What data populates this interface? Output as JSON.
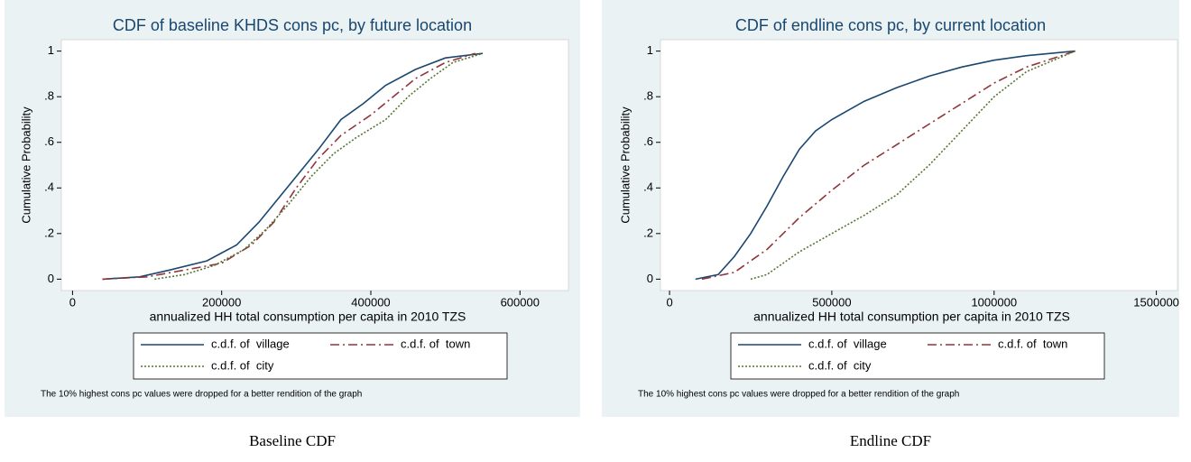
{
  "chart_data": [
    {
      "type": "line",
      "title": "CDF of baseline KHDS cons pc, by future location",
      "xlabel": "annualized HH total consumption per capita in 2010 TZS",
      "ylabel": "Cumulative Probability",
      "note": "The 10% highest cons pc values were dropped for a better rendition of the graph",
      "caption": "Baseline CDF",
      "xlim": [
        -15000,
        665000
      ],
      "xticks": [
        0,
        200000,
        400000,
        600000
      ],
      "ylim": [
        -0.05,
        1.05
      ],
      "yticks": [
        0,
        {
          "value": 0.2,
          "label": ".2"
        },
        {
          "value": 0.4,
          "label": ".4"
        },
        {
          "value": 0.6,
          "label": ".6"
        },
        {
          "value": 0.8,
          "label": ".8"
        },
        1
      ],
      "series": [
        {
          "name": "c.d.f. of  village",
          "color": "#1a476f",
          "line_style": "solid",
          "x": [
            40000,
            90000,
            130000,
            180000,
            220000,
            250000,
            280000,
            300000,
            330000,
            360000,
            390000,
            420000,
            460000,
            500000,
            550000
          ],
          "values": [
            0,
            0.01,
            0.04,
            0.08,
            0.15,
            0.25,
            0.37,
            0.45,
            0.57,
            0.7,
            0.77,
            0.85,
            0.92,
            0.97,
            0.99
          ]
        },
        {
          "name": "c.d.f. of  town",
          "color": "#90353b",
          "line_style": "dash-dot",
          "x": [
            40000,
            100000,
            150000,
            200000,
            240000,
            270000,
            300000,
            330000,
            360000,
            400000,
            430000,
            460000,
            500000,
            540000
          ],
          "values": [
            0,
            0.01,
            0.04,
            0.07,
            0.15,
            0.25,
            0.4,
            0.53,
            0.63,
            0.72,
            0.8,
            0.88,
            0.95,
            0.99
          ]
        },
        {
          "name": "c.d.f. of  city",
          "color": "#55752f",
          "line_style": "dot",
          "x": [
            110000,
            150000,
            190000,
            230000,
            260000,
            290000,
            320000,
            350000,
            380000,
            420000,
            450000,
            480000,
            510000,
            550000
          ],
          "values": [
            0,
            0.02,
            0.06,
            0.13,
            0.22,
            0.33,
            0.45,
            0.55,
            0.62,
            0.7,
            0.8,
            0.88,
            0.95,
            0.99
          ]
        }
      ]
    },
    {
      "type": "line",
      "title": "CDF of endline cons pc, by current location",
      "xlabel": "annualized HH total consumption per capita in 2010 TZS",
      "ylabel": "Cumulative Probability",
      "note": "The 10% highest cons pc values were dropped for a better rendition of the graph",
      "caption": "Endline CDF",
      "xlim": [
        -28000,
        1565000
      ],
      "xticks": [
        0,
        500000,
        1000000,
        1500000
      ],
      "ylim": [
        -0.05,
        1.05
      ],
      "yticks": [
        0,
        {
          "value": 0.2,
          "label": ".2"
        },
        {
          "value": 0.4,
          "label": ".4"
        },
        {
          "value": 0.6,
          "label": ".6"
        },
        {
          "value": 0.8,
          "label": ".8"
        },
        1
      ],
      "series": [
        {
          "name": "c.d.f. of  village",
          "color": "#1a476f",
          "line_style": "solid",
          "x": [
            80000,
            150000,
            200000,
            250000,
            300000,
            350000,
            400000,
            450000,
            500000,
            600000,
            700000,
            800000,
            900000,
            1000000,
            1100000,
            1250000
          ],
          "values": [
            0,
            0.02,
            0.1,
            0.2,
            0.32,
            0.45,
            0.57,
            0.65,
            0.7,
            0.78,
            0.84,
            0.89,
            0.93,
            0.96,
            0.98,
            1
          ]
        },
        {
          "name": "c.d.f. of  town",
          "color": "#90353b",
          "line_style": "dash-dot",
          "x": [
            100000,
            200000,
            250000,
            300000,
            400000,
            500000,
            600000,
            700000,
            800000,
            900000,
            1000000,
            1100000,
            1250000
          ],
          "values": [
            0,
            0.03,
            0.08,
            0.13,
            0.27,
            0.39,
            0.5,
            0.59,
            0.68,
            0.77,
            0.86,
            0.93,
            1
          ]
        },
        {
          "name": "c.d.f. of  city",
          "color": "#55752f",
          "line_style": "dot",
          "x": [
            250000,
            300000,
            400000,
            500000,
            600000,
            700000,
            800000,
            900000,
            1000000,
            1100000,
            1250000
          ],
          "values": [
            0,
            0.02,
            0.12,
            0.2,
            0.28,
            0.37,
            0.5,
            0.65,
            0.8,
            0.91,
            1
          ]
        }
      ]
    }
  ]
}
